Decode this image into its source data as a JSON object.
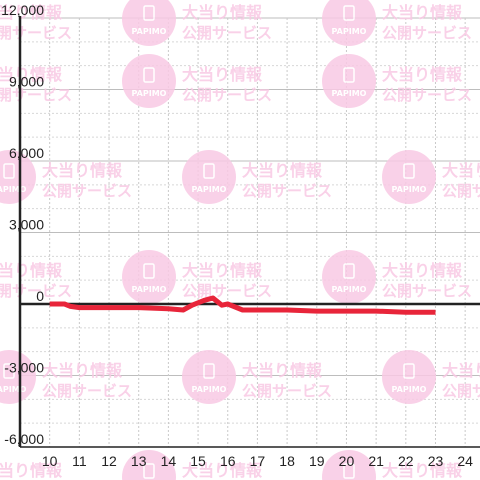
{
  "watermark": {
    "line1": "大当り情報",
    "line2": "公開サービス",
    "brand": "PAPIMO",
    "color": "#f9c9e4"
  },
  "chart_data": {
    "type": "line",
    "x": [
      10,
      10.5,
      10.7,
      11,
      12,
      13,
      14,
      14.5,
      14.8,
      15.2,
      15.5,
      15.8,
      16,
      16.5,
      17,
      18,
      19,
      20,
      21,
      22,
      23
    ],
    "series": [
      {
        "values": [
          0,
          0,
          -100,
          -150,
          -150,
          -150,
          -200,
          -250,
          -50,
          150,
          250,
          -50,
          0,
          -250,
          -250,
          -250,
          -300,
          -300,
          -300,
          -350,
          -350
        ]
      }
    ],
    "xlim": [
      9,
      24.5
    ],
    "ylim": [
      -6000,
      12000
    ],
    "x_ticks": [
      10,
      11,
      12,
      13,
      14,
      15,
      16,
      17,
      18,
      19,
      20,
      21,
      22,
      23,
      24
    ],
    "y_ticks": [
      {
        "value": 12000,
        "label": "12,000"
      },
      {
        "value": 9000,
        "label": "9,000"
      },
      {
        "value": 6000,
        "label": "6,000"
      },
      {
        "value": 3000,
        "label": "3,000"
      },
      {
        "value": 0,
        "label": "0"
      },
      {
        "value": -3000,
        "label": "-3,000"
      },
      {
        "value": -6000,
        "label": "-6,000"
      }
    ],
    "title": "",
    "xlabel": "",
    "ylabel": "",
    "grid": true,
    "line_color": "#e8253a",
    "axis_color": "#222222"
  }
}
